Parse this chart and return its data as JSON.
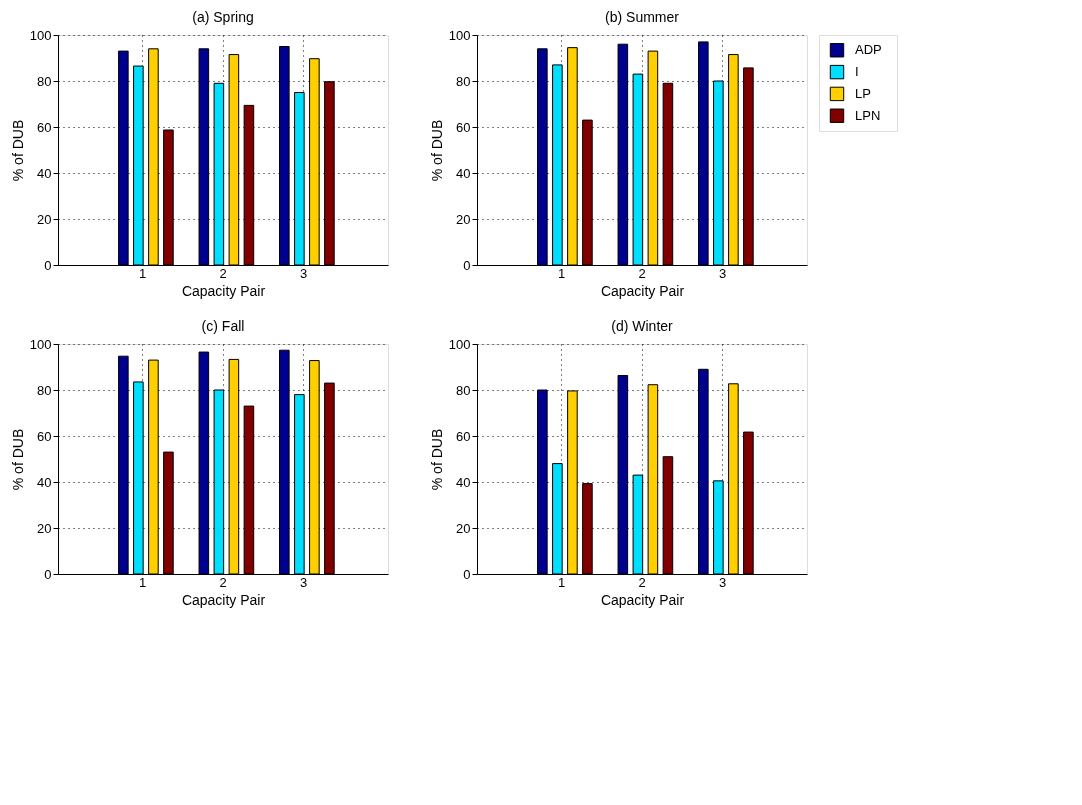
{
  "chart_data": [
    {
      "type": "bar",
      "title": "(a) Spring",
      "xlabel": "Capacity Pair",
      "ylabel": "% of DUB",
      "categories": [
        "1",
        "2",
        "3"
      ],
      "ylim": [
        0,
        100
      ],
      "yticks": [
        0,
        20,
        40,
        60,
        80,
        100
      ],
      "grid": true,
      "legend": false,
      "series": [
        {
          "color": "#00008f",
          "values": [
            93,
            94,
            95
          ]
        },
        {
          "color": "#00dfff",
          "values": [
            86.5,
            79,
            75
          ]
        },
        {
          "color": "#ffcf00",
          "values": [
            94,
            91.5,
            89.7
          ]
        },
        {
          "color": "#800000",
          "values": [
            58.7,
            69.4,
            79.7
          ]
        }
      ]
    },
    {
      "type": "bar",
      "title": "(b) Summer",
      "xlabel": "Capacity Pair",
      "ylabel": "% of DUB",
      "categories": [
        "1",
        "2",
        "3"
      ],
      "ylim": [
        0,
        100
      ],
      "yticks": [
        0,
        20,
        40,
        60,
        80,
        100
      ],
      "grid": true,
      "legend": "top right",
      "series": [
        {
          "name": "ADP",
          "color": "#00008f",
          "values": [
            94,
            96,
            97
          ]
        },
        {
          "name": "I",
          "color": "#00dfff",
          "values": [
            87,
            83,
            80
          ]
        },
        {
          "name": "LP",
          "color": "#ffcf00",
          "values": [
            94.5,
            93,
            91.5
          ]
        },
        {
          "name": "LPN",
          "color": "#800000",
          "values": [
            63,
            79,
            85.7
          ]
        }
      ]
    },
    {
      "type": "bar",
      "title": "(c) Fall",
      "xlabel": "Capacity Pair",
      "ylabel": "% of DUB",
      "categories": [
        "1",
        "2",
        "3"
      ],
      "ylim": [
        0,
        100
      ],
      "yticks": [
        0,
        20,
        40,
        60,
        80,
        100
      ],
      "grid": true,
      "legend": false,
      "series": [
        {
          "color": "#00008f",
          "values": [
            94.7,
            96.5,
            97.3
          ]
        },
        {
          "color": "#00dfff",
          "values": [
            83.5,
            80,
            78
          ]
        },
        {
          "color": "#ffcf00",
          "values": [
            93,
            93.3,
            92.8
          ]
        },
        {
          "color": "#800000",
          "values": [
            53,
            73,
            83
          ]
        }
      ]
    },
    {
      "type": "bar",
      "title": "(d) Winter",
      "xlabel": "Capacity Pair",
      "ylabel": "% of DUB",
      "categories": [
        "1",
        "2",
        "3"
      ],
      "ylim": [
        0,
        100
      ],
      "yticks": [
        0,
        20,
        40,
        60,
        80,
        100
      ],
      "grid": true,
      "legend": false,
      "series": [
        {
          "color": "#00008f",
          "values": [
            80,
            86.3,
            89
          ]
        },
        {
          "color": "#00dfff",
          "values": [
            48,
            43,
            40.5
          ]
        },
        {
          "color": "#ffcf00",
          "values": [
            79.6,
            82.3,
            82.7
          ]
        },
        {
          "color": "#800000",
          "values": [
            39.3,
            51,
            61.7
          ]
        }
      ]
    }
  ]
}
